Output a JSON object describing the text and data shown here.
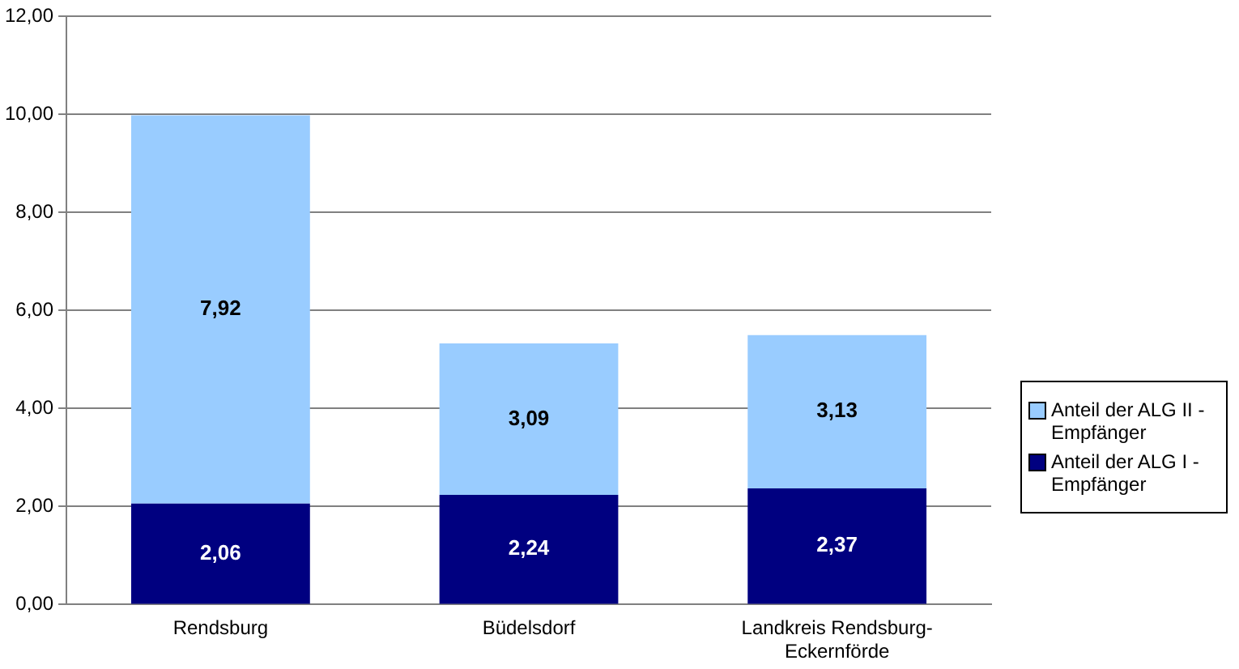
{
  "chart_data": {
    "type": "bar",
    "stacked": true,
    "categories": [
      "Rendsburg",
      "Büdelsdorf",
      "Landkreis Rendsburg-Eckernförde"
    ],
    "series": [
      {
        "name": "Anteil der ALG I - Empfänger",
        "color": "#000080",
        "values": [
          2.06,
          2.24,
          2.37
        ],
        "value_labels": [
          "2,06",
          "2,24",
          "2,37"
        ]
      },
      {
        "name": "Anteil der ALG II - Empfänger",
        "color": "#99ccff",
        "values": [
          7.92,
          3.09,
          3.13
        ],
        "value_labels": [
          "7,92",
          "3,09",
          "3,13"
        ]
      }
    ],
    "ylim": [
      0,
      12
    ],
    "yticks": [
      {
        "value": 0,
        "label": "0,00"
      },
      {
        "value": 2,
        "label": "2,00"
      },
      {
        "value": 4,
        "label": "4,00"
      },
      {
        "value": 6,
        "label": "6,00"
      },
      {
        "value": 8,
        "label": "8,00"
      },
      {
        "value": 10,
        "label": "10,00"
      },
      {
        "value": 12,
        "label": "12,00"
      }
    ],
    "grid": "y",
    "legend": "right"
  }
}
